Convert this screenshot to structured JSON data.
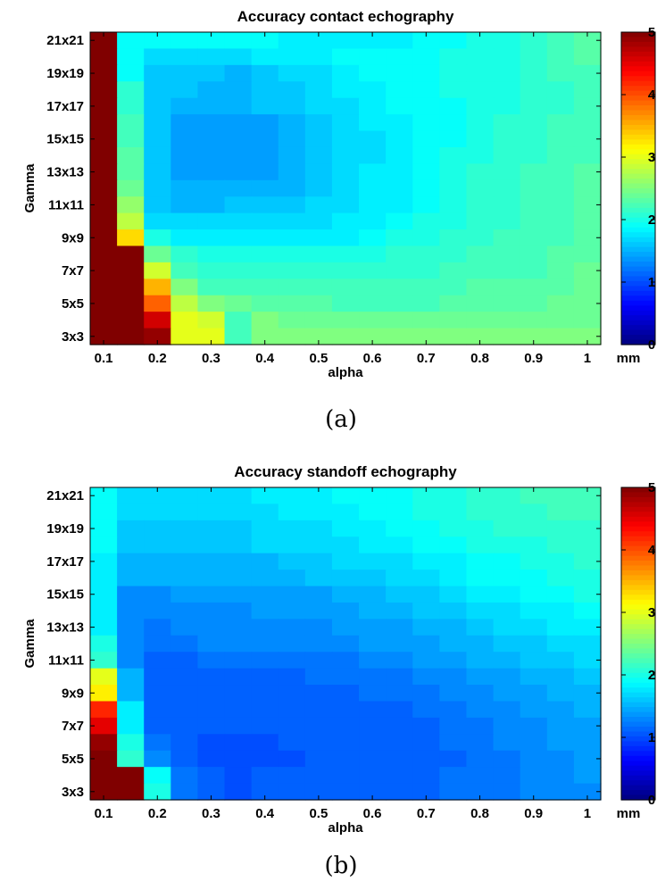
{
  "chart_data": [
    {
      "type": "heatmap",
      "title": "Accuracy contact echography",
      "xlabel": "alpha",
      "ylabel": "Gamma",
      "x_tick_labels": [
        "0.1",
        "0.2",
        "0.3",
        "0.4",
        "0.5",
        "0.6",
        "0.7",
        "0.8",
        "0.9",
        "1"
      ],
      "y_tick_labels": [
        "21x21",
        "19x19",
        "17x17",
        "15x15",
        "13x13",
        "11x11",
        "9x9",
        "7x7",
        "5x5",
        "3x3"
      ],
      "x": [
        0.1,
        0.15,
        0.2,
        0.25,
        0.3,
        0.35,
        0.4,
        0.45,
        0.5,
        0.55,
        0.6,
        0.65,
        0.7,
        0.75,
        0.8,
        0.85,
        0.9,
        0.95,
        1.0
      ],
      "y": [
        "21x21",
        "20x20",
        "19x19",
        "18x18",
        "17x17",
        "16x16",
        "15x15",
        "14x14",
        "13x13",
        "12x12",
        "11x11",
        "10x10",
        "9x9",
        "8x8",
        "7x7",
        "6x6",
        "5x5",
        "4x4",
        "3x3"
      ],
      "values": [
        [
          5,
          1.9,
          1.9,
          1.9,
          1.9,
          1.9,
          1.9,
          1.8,
          1.8,
          1.8,
          1.8,
          1.8,
          1.9,
          1.9,
          2.0,
          2.0,
          2.1,
          2.2,
          2.3
        ],
        [
          5,
          1.9,
          1.7,
          1.7,
          1.7,
          1.7,
          1.8,
          1.8,
          1.8,
          1.9,
          1.9,
          1.9,
          1.9,
          2.0,
          2.0,
          2.0,
          2.1,
          2.2,
          2.3
        ],
        [
          5,
          1.9,
          1.6,
          1.6,
          1.6,
          1.5,
          1.6,
          1.7,
          1.7,
          1.8,
          1.9,
          1.9,
          1.9,
          2.0,
          2.0,
          2.0,
          2.1,
          2.2,
          2.2
        ],
        [
          5,
          2.1,
          1.6,
          1.6,
          1.5,
          1.5,
          1.6,
          1.6,
          1.7,
          1.8,
          1.8,
          1.9,
          1.9,
          2.0,
          2.0,
          2.0,
          2.1,
          2.1,
          2.2
        ],
        [
          5,
          2.1,
          1.6,
          1.5,
          1.5,
          1.5,
          1.6,
          1.6,
          1.7,
          1.7,
          1.8,
          1.9,
          1.9,
          1.9,
          2.0,
          2.0,
          2.1,
          2.1,
          2.2
        ],
        [
          5,
          2.2,
          1.6,
          1.4,
          1.4,
          1.4,
          1.4,
          1.5,
          1.6,
          1.7,
          1.8,
          1.8,
          1.9,
          1.9,
          2.0,
          2.1,
          2.1,
          2.2,
          2.2
        ],
        [
          5,
          2.2,
          1.6,
          1.4,
          1.4,
          1.4,
          1.4,
          1.5,
          1.6,
          1.7,
          1.7,
          1.8,
          1.9,
          1.9,
          2.0,
          2.1,
          2.1,
          2.2,
          2.2
        ],
        [
          5,
          2.3,
          1.6,
          1.4,
          1.4,
          1.4,
          1.4,
          1.5,
          1.6,
          1.7,
          1.7,
          1.8,
          1.9,
          2.0,
          2.0,
          2.1,
          2.1,
          2.2,
          2.2
        ],
        [
          5,
          2.3,
          1.6,
          1.4,
          1.4,
          1.4,
          1.4,
          1.5,
          1.6,
          1.7,
          1.8,
          1.8,
          1.9,
          2.0,
          2.1,
          2.1,
          2.2,
          2.2,
          2.3
        ],
        [
          5,
          2.4,
          1.6,
          1.5,
          1.5,
          1.5,
          1.5,
          1.5,
          1.6,
          1.7,
          1.8,
          1.8,
          1.9,
          2.0,
          2.1,
          2.1,
          2.2,
          2.2,
          2.3
        ],
        [
          5,
          2.6,
          1.6,
          1.5,
          1.5,
          1.6,
          1.6,
          1.6,
          1.7,
          1.7,
          1.8,
          1.8,
          1.9,
          2.0,
          2.1,
          2.1,
          2.2,
          2.2,
          2.3
        ],
        [
          5,
          2.8,
          1.7,
          1.7,
          1.7,
          1.7,
          1.7,
          1.7,
          1.7,
          1.8,
          1.8,
          1.9,
          2.0,
          2.0,
          2.1,
          2.1,
          2.2,
          2.2,
          2.3
        ],
        [
          5,
          3.3,
          2.0,
          1.8,
          1.8,
          1.8,
          1.8,
          1.8,
          1.8,
          1.8,
          1.9,
          2.0,
          2.0,
          2.1,
          2.1,
          2.2,
          2.2,
          2.2,
          2.3
        ],
        [
          5,
          5,
          2.4,
          2.1,
          2.0,
          2.0,
          2.0,
          2.0,
          2.0,
          2.0,
          2.0,
          2.1,
          2.1,
          2.1,
          2.2,
          2.2,
          2.2,
          2.3,
          2.3
        ],
        [
          5,
          5,
          2.9,
          2.2,
          2.1,
          2.1,
          2.1,
          2.1,
          2.1,
          2.1,
          2.1,
          2.1,
          2.1,
          2.2,
          2.2,
          2.2,
          2.2,
          2.3,
          2.4
        ],
        [
          5,
          5,
          3.5,
          2.5,
          2.2,
          2.2,
          2.2,
          2.2,
          2.2,
          2.2,
          2.2,
          2.2,
          2.2,
          2.2,
          2.3,
          2.3,
          2.3,
          2.3,
          2.4
        ],
        [
          5,
          5,
          3.9,
          2.8,
          2.5,
          2.4,
          2.3,
          2.3,
          2.3,
          2.2,
          2.2,
          2.2,
          2.2,
          2.3,
          2.3,
          2.3,
          2.3,
          2.4,
          2.4
        ],
        [
          5,
          5,
          4.6,
          3.0,
          2.9,
          2.2,
          2.5,
          2.4,
          2.4,
          2.4,
          2.4,
          2.4,
          2.4,
          2.4,
          2.4,
          2.4,
          2.4,
          2.4,
          2.4
        ],
        [
          5,
          5,
          4.9,
          3.0,
          3.0,
          2.2,
          2.5,
          2.5,
          2.5,
          2.5,
          2.5,
          2.5,
          2.5,
          2.5,
          2.5,
          2.5,
          2.5,
          2.5,
          2.5
        ]
      ],
      "colorbar": {
        "range": [
          0,
          5
        ],
        "tick_labels": [
          "0",
          "1",
          "2",
          "3",
          "4",
          "5"
        ],
        "unit": "mm",
        "colormap": "jet"
      }
    },
    {
      "type": "heatmap",
      "title": "Accuracy standoff echography",
      "xlabel": "alpha",
      "ylabel": "Gamma",
      "x_tick_labels": [
        "0.1",
        "0.2",
        "0.3",
        "0.4",
        "0.5",
        "0.6",
        "0.7",
        "0.8",
        "0.9",
        "1"
      ],
      "y_tick_labels": [
        "21x21",
        "19x19",
        "17x17",
        "15x15",
        "13x13",
        "11x11",
        "9x9",
        "7x7",
        "5x5",
        "3x3"
      ],
      "x": [
        0.1,
        0.15,
        0.2,
        0.25,
        0.3,
        0.35,
        0.4,
        0.45,
        0.5,
        0.55,
        0.6,
        0.65,
        0.7,
        0.75,
        0.8,
        0.85,
        0.9,
        0.95,
        1.0
      ],
      "y": [
        "21x21",
        "20x20",
        "19x19",
        "18x18",
        "17x17",
        "16x16",
        "15x15",
        "14x14",
        "13x13",
        "12x12",
        "11x11",
        "10x10",
        "9x9",
        "8x8",
        "7x7",
        "6x6",
        "5x5",
        "4x4",
        "3x3"
      ],
      "values": [
        [
          1.9,
          1.7,
          1.7,
          1.7,
          1.7,
          1.7,
          1.8,
          1.8,
          1.8,
          1.9,
          1.9,
          1.9,
          2.0,
          2.0,
          2.1,
          2.1,
          2.2,
          2.2,
          2.2
        ],
        [
          1.9,
          1.7,
          1.7,
          1.7,
          1.7,
          1.7,
          1.7,
          1.8,
          1.8,
          1.8,
          1.9,
          1.9,
          2.0,
          2.0,
          2.1,
          2.1,
          2.1,
          2.2,
          2.2
        ],
        [
          1.9,
          1.6,
          1.6,
          1.6,
          1.6,
          1.6,
          1.7,
          1.7,
          1.7,
          1.8,
          1.8,
          1.9,
          1.9,
          2.0,
          2.0,
          2.1,
          2.1,
          2.1,
          2.1
        ],
        [
          1.9,
          1.6,
          1.6,
          1.6,
          1.6,
          1.6,
          1.7,
          1.7,
          1.7,
          1.7,
          1.8,
          1.8,
          1.9,
          1.9,
          2.0,
          2.0,
          2.0,
          2.1,
          2.1
        ],
        [
          1.8,
          1.5,
          1.5,
          1.5,
          1.5,
          1.5,
          1.5,
          1.6,
          1.6,
          1.7,
          1.7,
          1.7,
          1.8,
          1.8,
          1.9,
          1.9,
          2.0,
          2.0,
          2.1
        ],
        [
          1.8,
          1.5,
          1.5,
          1.5,
          1.5,
          1.5,
          1.5,
          1.5,
          1.6,
          1.6,
          1.6,
          1.7,
          1.7,
          1.8,
          1.9,
          1.9,
          1.9,
          2.0,
          2.0
        ],
        [
          1.8,
          1.3,
          1.3,
          1.4,
          1.4,
          1.4,
          1.4,
          1.4,
          1.4,
          1.5,
          1.5,
          1.6,
          1.6,
          1.7,
          1.8,
          1.8,
          1.9,
          1.9,
          2.0
        ],
        [
          1.8,
          1.3,
          1.3,
          1.3,
          1.3,
          1.3,
          1.4,
          1.4,
          1.4,
          1.4,
          1.5,
          1.5,
          1.6,
          1.6,
          1.7,
          1.7,
          1.8,
          1.8,
          1.9
        ],
        [
          1.8,
          1.3,
          1.2,
          1.3,
          1.3,
          1.3,
          1.3,
          1.3,
          1.3,
          1.4,
          1.4,
          1.4,
          1.5,
          1.5,
          1.6,
          1.7,
          1.7,
          1.8,
          1.8
        ],
        [
          2.0,
          1.3,
          1.2,
          1.2,
          1.3,
          1.3,
          1.3,
          1.3,
          1.3,
          1.3,
          1.4,
          1.4,
          1.4,
          1.5,
          1.5,
          1.6,
          1.6,
          1.7,
          1.7
        ],
        [
          2.1,
          1.3,
          1.1,
          1.1,
          1.2,
          1.2,
          1.2,
          1.2,
          1.2,
          1.2,
          1.3,
          1.3,
          1.4,
          1.4,
          1.5,
          1.5,
          1.6,
          1.6,
          1.7
        ],
        [
          3.0,
          1.5,
          1.1,
          1.1,
          1.1,
          1.1,
          1.1,
          1.1,
          1.2,
          1.2,
          1.2,
          1.2,
          1.3,
          1.3,
          1.4,
          1.4,
          1.5,
          1.5,
          1.6
        ],
        [
          3.2,
          1.5,
          1.1,
          1.1,
          1.1,
          1.1,
          1.1,
          1.1,
          1.1,
          1.1,
          1.2,
          1.2,
          1.2,
          1.3,
          1.3,
          1.4,
          1.4,
          1.5,
          1.5
        ],
        [
          4.2,
          1.8,
          1.1,
          1.1,
          1.1,
          1.1,
          1.1,
          1.1,
          1.1,
          1.1,
          1.1,
          1.1,
          1.2,
          1.2,
          1.3,
          1.3,
          1.4,
          1.4,
          1.5
        ],
        [
          4.5,
          1.8,
          1.1,
          1.1,
          1.1,
          1.1,
          1.1,
          1.1,
          1.1,
          1.1,
          1.1,
          1.1,
          1.1,
          1.2,
          1.2,
          1.3,
          1.3,
          1.4,
          1.4
        ],
        [
          4.9,
          2.0,
          1.2,
          1.1,
          1.0,
          1.0,
          1.0,
          1.1,
          1.1,
          1.1,
          1.1,
          1.1,
          1.1,
          1.2,
          1.2,
          1.3,
          1.3,
          1.4,
          1.4
        ],
        [
          5,
          2.1,
          1.3,
          1.1,
          1.0,
          1.0,
          1.0,
          1.0,
          1.1,
          1.1,
          1.1,
          1.1,
          1.1,
          1.1,
          1.2,
          1.2,
          1.3,
          1.3,
          1.4
        ],
        [
          5,
          5,
          1.9,
          1.2,
          1.1,
          1.0,
          1.1,
          1.1,
          1.1,
          1.1,
          1.1,
          1.1,
          1.1,
          1.2,
          1.2,
          1.2,
          1.3,
          1.3,
          1.4
        ],
        [
          5,
          5,
          2.0,
          1.2,
          1.1,
          1.0,
          1.1,
          1.1,
          1.1,
          1.1,
          1.1,
          1.1,
          1.1,
          1.2,
          1.2,
          1.2,
          1.3,
          1.3,
          1.3
        ]
      ],
      "colorbar": {
        "range": [
          0,
          5
        ],
        "tick_labels": [
          "0",
          "1",
          "2",
          "3",
          "4",
          "5"
        ],
        "unit": "mm",
        "colormap": "jet"
      }
    }
  ],
  "captions": [
    "(a)",
    "(b)"
  ]
}
